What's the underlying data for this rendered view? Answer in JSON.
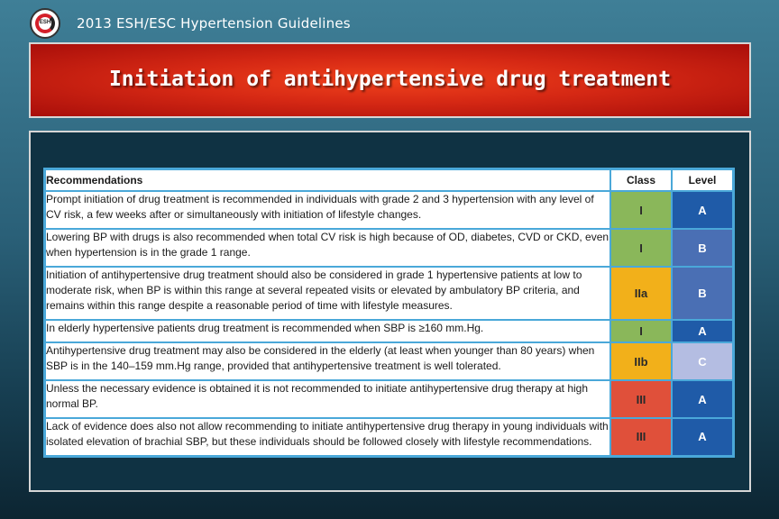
{
  "header": {
    "title": "2013 ESH/ESC Hypertension Guidelines",
    "logo_text": "ESH"
  },
  "banner": {
    "title": "Initiation of antihypertensive drug treatment"
  },
  "table": {
    "columns": [
      "Recommendations",
      "Class",
      "Level"
    ],
    "rows": [
      {
        "recommendation": "Prompt initiation of drug treatment is recommended in individuals with grade 2 and 3 hypertension with any level of CV risk, a few weeks after or simultaneously with initiation of lifestyle changes.",
        "class": "I",
        "level": "A"
      },
      {
        "recommendation": "Lowering BP with drugs is also recommended when total CV risk is high because of OD, diabetes, CVD or CKD, even when hypertension is in the grade 1 range.",
        "class": "I",
        "level": "B"
      },
      {
        "recommendation": "Initiation of antihypertensive drug treatment should also be considered in grade 1 hypertensive patients at low to moderate risk, when BP is within this range at several repeated visits or elevated by ambulatory BP criteria, and remains within this range despite a reasonable period of time with lifestyle measures.",
        "class": "IIa",
        "level": "B"
      },
      {
        "recommendation": "In elderly hypertensive patients drug treatment is recommended when SBP is ≥160 mm.Hg.",
        "class": "I",
        "level": "A"
      },
      {
        "recommendation": "Antihypertensive drug treatment may also be considered in the elderly (at least when younger than 80 years) when SBP is in the 140–159 mm.Hg range, provided that antihypertensive treatment is well tolerated.",
        "class": "IIb",
        "level": "C"
      },
      {
        "recommendation": "Unless the necessary evidence is obtained it is not recommended to initiate antihypertensive drug therapy at high normal BP.",
        "class": "III",
        "level": "A"
      },
      {
        "recommendation": "Lack of evidence does also not allow recommending to initiate antihypertensive drug therapy in young individuals with isolated elevation of brachial SBP, but these individuals should be followed closely with lifestyle recommendations.",
        "class": "III",
        "level": "A"
      }
    ]
  },
  "colors": {
    "class_I": "#8ab75a",
    "class_IIa": "#f2b01a",
    "class_IIb": "#f2b01a",
    "class_III": "#e0503a",
    "level_A": "#1f5ba8",
    "level_B": "#4a6fb4",
    "level_C": "#b4bde2",
    "table_border": "#4aa8d9",
    "banner_red": "#d52814"
  }
}
